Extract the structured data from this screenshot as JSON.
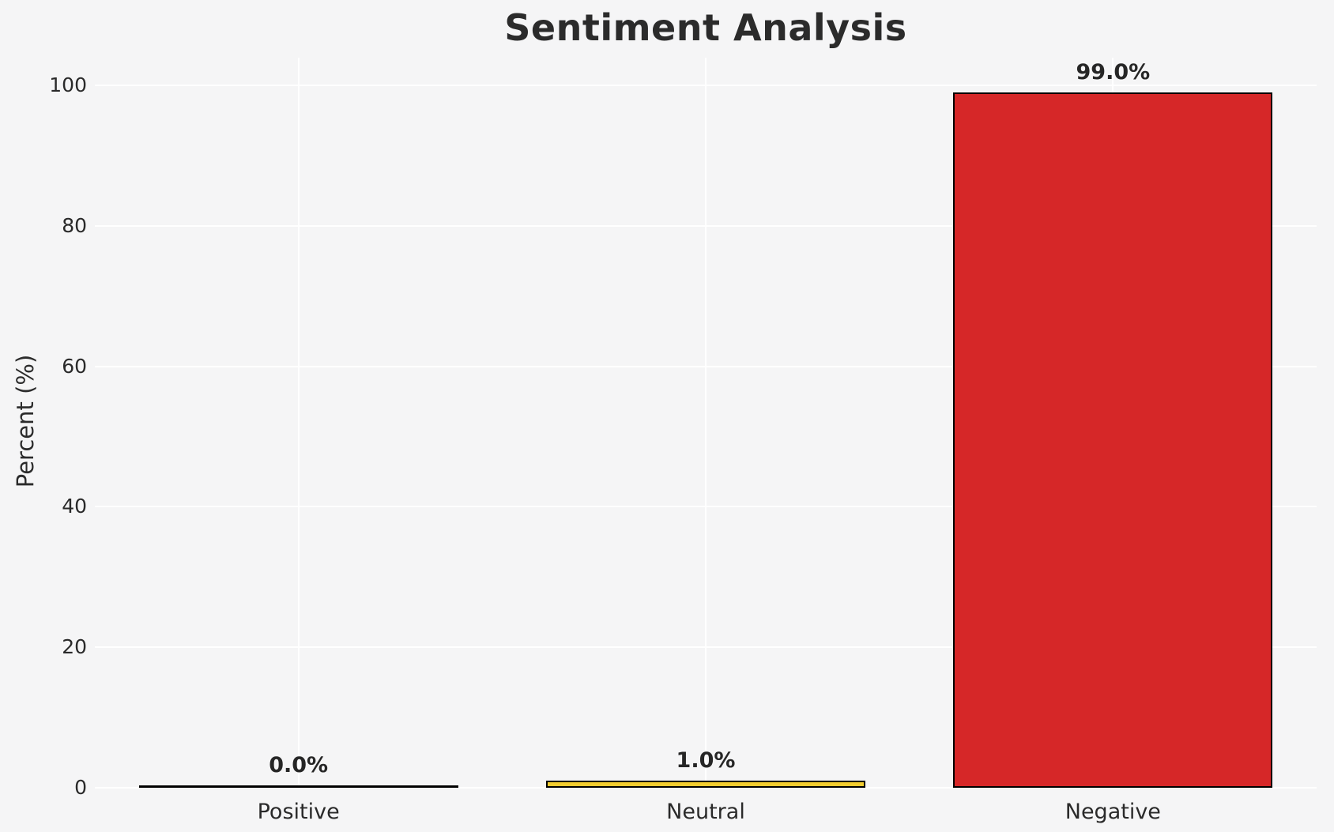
{
  "chart_data": {
    "type": "bar",
    "title": "Sentiment Analysis",
    "xlabel": "",
    "ylabel": "Percent (%)",
    "categories": [
      "Positive",
      "Neutral",
      "Negative"
    ],
    "values": [
      0.0,
      1.0,
      99.0
    ],
    "value_labels": [
      "0.0%",
      "1.0%",
      "99.0%"
    ],
    "bar_colors": [
      null,
      "#f3cd30",
      "#d62728"
    ],
    "bar_edge_color": "#000000",
    "yticks": [
      0,
      20,
      40,
      60,
      80,
      100
    ],
    "ylim": [
      0,
      104
    ],
    "grid": true,
    "grid_color": "#ffffff",
    "background_color": "#f5f5f6",
    "text_color": "#2b2b2b",
    "legend_position": "none"
  }
}
